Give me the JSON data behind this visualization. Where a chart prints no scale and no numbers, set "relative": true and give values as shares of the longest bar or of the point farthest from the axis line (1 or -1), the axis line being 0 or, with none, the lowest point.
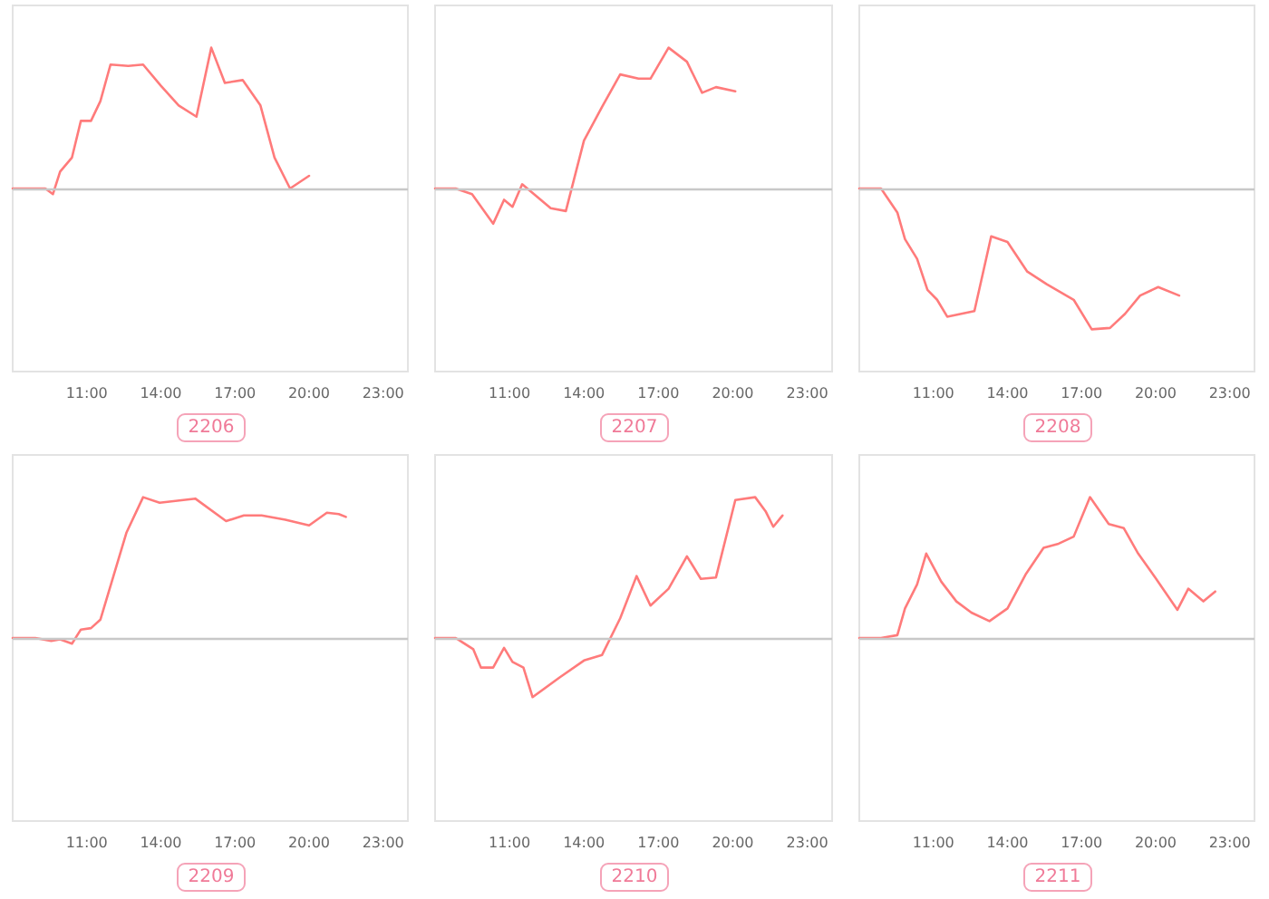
{
  "chart_data": [
    {
      "type": "line",
      "title": "2206",
      "relative": true,
      "tick_labels": "x",
      "xlim": [
        8,
        24
      ],
      "xticks": [
        {
          "value": 11,
          "label": "11:00"
        },
        {
          "value": 14,
          "label": "14:00"
        },
        {
          "value": 17,
          "label": "17:00"
        },
        {
          "value": 20,
          "label": "20:00"
        },
        {
          "value": 23,
          "label": "23:00"
        }
      ],
      "series": [
        {
          "color": "#ff7b7b",
          "x": [
            8.0,
            9.32,
            9.63,
            9.92,
            10.4,
            10.76,
            11.17,
            11.55,
            11.96,
            12.68,
            13.28,
            14.0,
            14.72,
            15.44,
            16.04,
            16.59,
            17.31,
            18.03,
            18.6,
            19.23,
            20.0
          ],
          "values": [
            0,
            0,
            -0.04,
            0.12,
            0.22,
            0.48,
            0.48,
            0.62,
            0.88,
            0.87,
            0.88,
            0.73,
            0.59,
            0.51,
            1,
            0.75,
            0.77,
            0.59,
            0.22,
            0,
            0.09
          ]
        }
      ]
    },
    {
      "type": "line",
      "title": "2207",
      "relative": true,
      "tick_labels": "x",
      "xlim": [
        8,
        24
      ],
      "xticks": [
        {
          "value": 11,
          "label": "11:00"
        },
        {
          "value": 14,
          "label": "14:00"
        },
        {
          "value": 17,
          "label": "17:00"
        },
        {
          "value": 20,
          "label": "20:00"
        },
        {
          "value": 23,
          "label": "23:00"
        }
      ],
      "series": [
        {
          "color": "#ff7b7b",
          "x": [
            8.0,
            8.83,
            9.49,
            10.34,
            10.78,
            11.12,
            11.51,
            12.66,
            13.27,
            14.0,
            14.73,
            15.46,
            16.2,
            16.68,
            17.41,
            18.15,
            18.76,
            19.32,
            20.1
          ],
          "values": [
            0,
            0,
            -0.04,
            -0.25,
            -0.08,
            -0.13,
            0.03,
            -0.14,
            -0.16,
            0.34,
            0.58,
            0.81,
            0.78,
            0.78,
            1,
            0.9,
            0.68,
            0.72,
            0.69
          ]
        }
      ]
    },
    {
      "type": "line",
      "title": "2208",
      "relative": true,
      "tick_labels": "x",
      "xlim": [
        8,
        24
      ],
      "xticks": [
        {
          "value": 11,
          "label": "11:00"
        },
        {
          "value": 14,
          "label": "14:00"
        },
        {
          "value": 17,
          "label": "17:00"
        },
        {
          "value": 20,
          "label": "20:00"
        },
        {
          "value": 23,
          "label": "23:00"
        }
      ],
      "series": [
        {
          "color": "#ff7b7b",
          "x": [
            8.0,
            8.88,
            9.54,
            9.85,
            10.34,
            10.76,
            11.15,
            11.56,
            12.66,
            13.34,
            14.0,
            14.8,
            15.59,
            16.68,
            17.41,
            18.15,
            18.76,
            19.37,
            20.1,
            20.95
          ],
          "values": [
            0,
            0,
            -0.17,
            -0.36,
            -0.5,
            -0.72,
            -0.79,
            -0.91,
            -0.87,
            -0.34,
            -0.38,
            -0.59,
            -0.68,
            -0.79,
            -1,
            -0.99,
            -0.89,
            -0.76,
            -0.7,
            -0.76
          ]
        }
      ]
    },
    {
      "type": "line",
      "title": "2209",
      "relative": true,
      "tick_labels": "x",
      "xlim": [
        8,
        24
      ],
      "xticks": [
        {
          "value": 11,
          "label": "11:00"
        },
        {
          "value": 14,
          "label": "14:00"
        },
        {
          "value": 17,
          "label": "17:00"
        },
        {
          "value": 20,
          "label": "20:00"
        },
        {
          "value": 23,
          "label": "23:00"
        }
      ],
      "series": [
        {
          "color": "#ff7b7b",
          "x": [
            8.0,
            8.91,
            9.56,
            9.92,
            10.4,
            10.76,
            11.17,
            11.55,
            12.08,
            12.61,
            13.28,
            13.95,
            15.39,
            16.64,
            17.36,
            18.08,
            19.04,
            20.0,
            20.72,
            21.2,
            21.49
          ],
          "values": [
            0,
            0,
            -0.02,
            -0.01,
            -0.04,
            0.06,
            0.07,
            0.13,
            0.44,
            0.75,
            1,
            0.96,
            0.99,
            0.83,
            0.87,
            0.87,
            0.84,
            0.8,
            0.89,
            0.88,
            0.86
          ]
        }
      ]
    },
    {
      "type": "line",
      "title": "2210",
      "relative": true,
      "tick_labels": "x",
      "xlim": [
        8,
        24
      ],
      "xticks": [
        {
          "value": 11,
          "label": "11:00"
        },
        {
          "value": 14,
          "label": "14:00"
        },
        {
          "value": 17,
          "label": "17:00"
        },
        {
          "value": 20,
          "label": "20:00"
        },
        {
          "value": 23,
          "label": "23:00"
        }
      ],
      "series": [
        {
          "color": "#ff7b7b",
          "x": [
            8.0,
            8.83,
            9.54,
            9.85,
            10.34,
            10.78,
            11.12,
            11.56,
            11.93,
            13.02,
            14.0,
            14.73,
            15.46,
            16.12,
            16.68,
            17.41,
            18.15,
            18.71,
            19.32,
            20.1,
            20.9,
            21.32,
            21.63,
            22.0
          ],
          "values": [
            0,
            0,
            -0.08,
            -0.21,
            -0.21,
            -0.07,
            -0.17,
            -0.21,
            -0.42,
            -0.28,
            -0.16,
            -0.12,
            0.14,
            0.44,
            0.23,
            0.35,
            0.58,
            0.42,
            0.43,
            0.98,
            1,
            0.9,
            0.79,
            0.87
          ]
        }
      ]
    },
    {
      "type": "line",
      "title": "2211",
      "relative": true,
      "tick_labels": "x",
      "xlim": [
        8,
        24
      ],
      "xticks": [
        {
          "value": 11,
          "label": "11:00"
        },
        {
          "value": 14,
          "label": "14:00"
        },
        {
          "value": 17,
          "label": "17:00"
        },
        {
          "value": 20,
          "label": "20:00"
        },
        {
          "value": 23,
          "label": "23:00"
        }
      ],
      "series": [
        {
          "color": "#ff7b7b",
          "x": [
            8.0,
            8.88,
            9.54,
            9.85,
            10.34,
            10.71,
            11.32,
            11.93,
            12.54,
            13.27,
            14.0,
            14.73,
            15.46,
            16.07,
            16.68,
            17.34,
            18.1,
            18.71,
            19.29,
            19.98,
            20.88,
            21.32,
            21.93,
            22.41
          ],
          "values": [
            0,
            0,
            0.02,
            0.21,
            0.38,
            0.6,
            0.4,
            0.26,
            0.18,
            0.12,
            0.21,
            0.45,
            0.64,
            0.67,
            0.72,
            1,
            0.81,
            0.78,
            0.6,
            0.43,
            0.2,
            0.35,
            0.26,
            0.33
          ]
        }
      ]
    }
  ]
}
